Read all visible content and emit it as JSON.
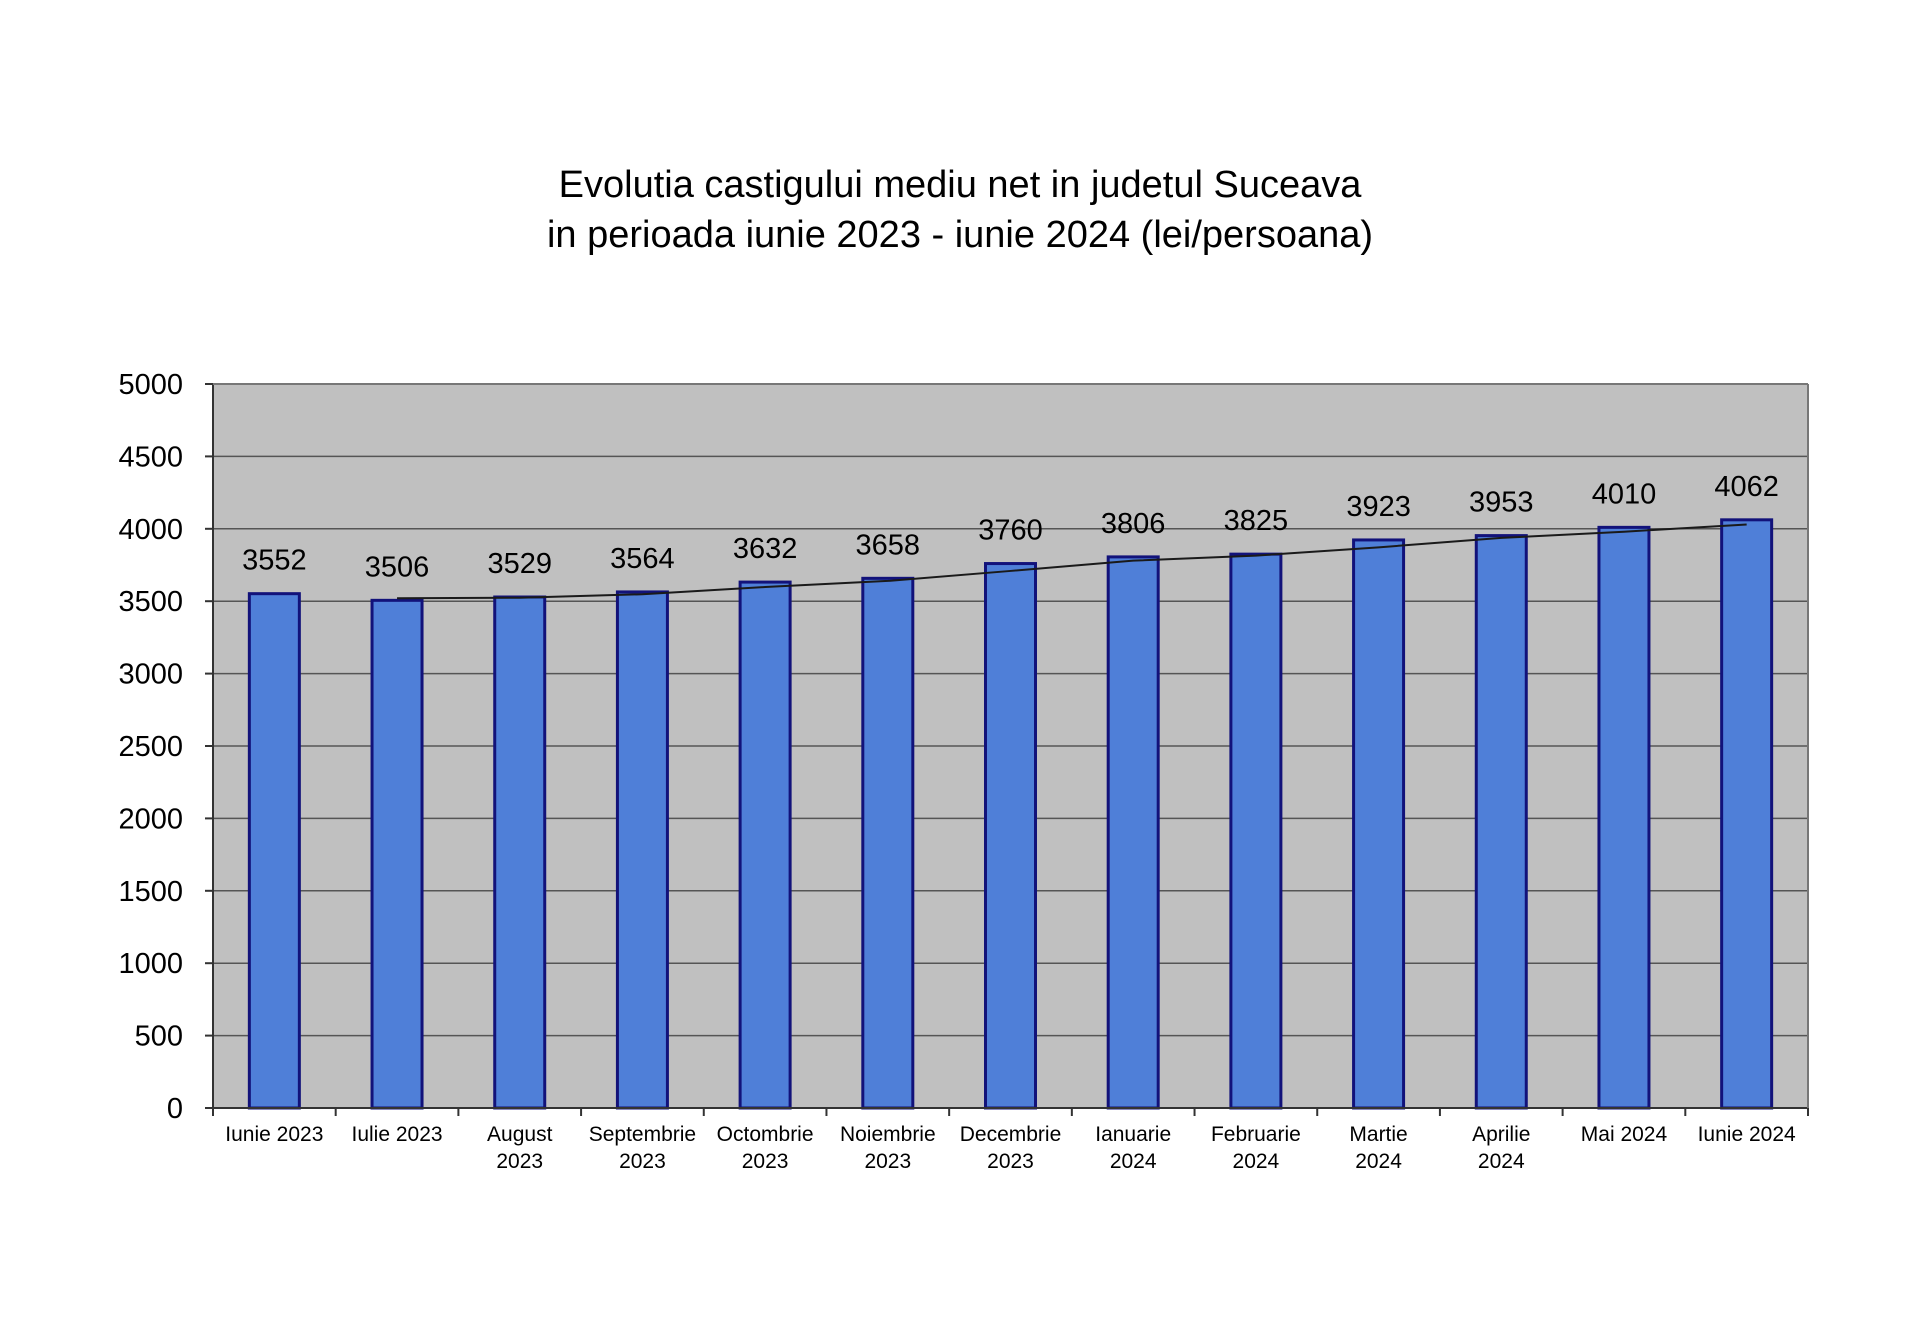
{
  "chart_data": {
    "type": "bar",
    "title": [
      "Evolutia castigului mediu net in judetul Suceava",
      "in perioada iunie 2023 - iunie 2024 (lei/persoana)"
    ],
    "categories": [
      [
        "Iunie 2023"
      ],
      [
        "Iulie 2023"
      ],
      [
        "August",
        "2023"
      ],
      [
        "Septembrie",
        "2023"
      ],
      [
        "Octombrie",
        "2023"
      ],
      [
        "Noiembrie",
        "2023"
      ],
      [
        "Decembrie",
        "2023"
      ],
      [
        "Ianuarie",
        "2024"
      ],
      [
        "Februarie",
        "2024"
      ],
      [
        "Martie",
        "2024"
      ],
      [
        "Aprilie",
        "2024"
      ],
      [
        "Mai 2024"
      ],
      [
        "Iunie 2024"
      ]
    ],
    "values": [
      3552,
      3506,
      3529,
      3564,
      3632,
      3658,
      3760,
      3806,
      3825,
      3923,
      3953,
      4010,
      4062
    ],
    "trendline": [
      null,
      3520,
      3524,
      3548,
      3598,
      3640,
      3709,
      3780,
      3815,
      3872,
      3937,
      3980,
      4030
    ],
    "ylim": [
      0,
      5000
    ],
    "yticks": [
      0,
      500,
      1000,
      1500,
      2000,
      2500,
      3000,
      3500,
      4000,
      4500,
      5000
    ],
    "grid": true,
    "legend": "none",
    "colors": {
      "bar_fill": "#4f7fd8",
      "bar_edge": "#12127a",
      "plot_bg": "#c0c0c0",
      "gridline": "#555555",
      "trendline": "#1a1a1a"
    }
  }
}
